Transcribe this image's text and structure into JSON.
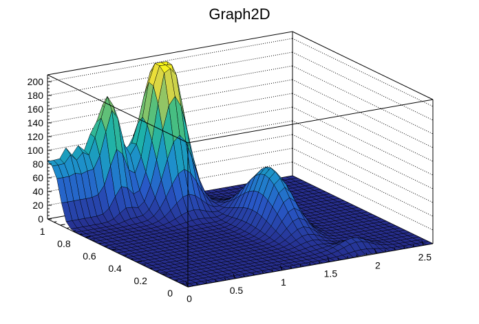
{
  "chart_data": {
    "type": "surface",
    "title": "Graph2D",
    "xlabel": "",
    "ylabel": "",
    "zlabel": "",
    "xlim": [
      0,
      2.6
    ],
    "ylim": [
      0,
      1.1
    ],
    "zlim": [
      0,
      210
    ],
    "x_ticks": [
      "0",
      "0.5",
      "1",
      "1.5",
      "2",
      "2.5"
    ],
    "y_ticks": [
      "0",
      "0.2",
      "0.4",
      "0.6",
      "0.8",
      "1"
    ],
    "z_ticks": [
      "0",
      "20",
      "40",
      "60",
      "80",
      "100",
      "120",
      "140",
      "160",
      "180",
      "200"
    ],
    "grid": true,
    "colormap": "viridis-like (blue → green → yellow)",
    "features": [
      {
        "name": "back plateau at y≈1.1",
        "x_range": [
          0,
          0.8
        ],
        "z": 85,
        "spikes_z": 100
      },
      {
        "name": "peak",
        "x": 0.6,
        "y": 1.05,
        "z": 175
      },
      {
        "name": "main peak (flat top)",
        "x": 1.1,
        "y": 1.05,
        "z": 205
      },
      {
        "name": "side ridge",
        "x": 1.6,
        "y": 0.55,
        "z": 85
      },
      {
        "name": "small bump",
        "x": 1.9,
        "y": 0.1,
        "z": 15
      }
    ]
  }
}
